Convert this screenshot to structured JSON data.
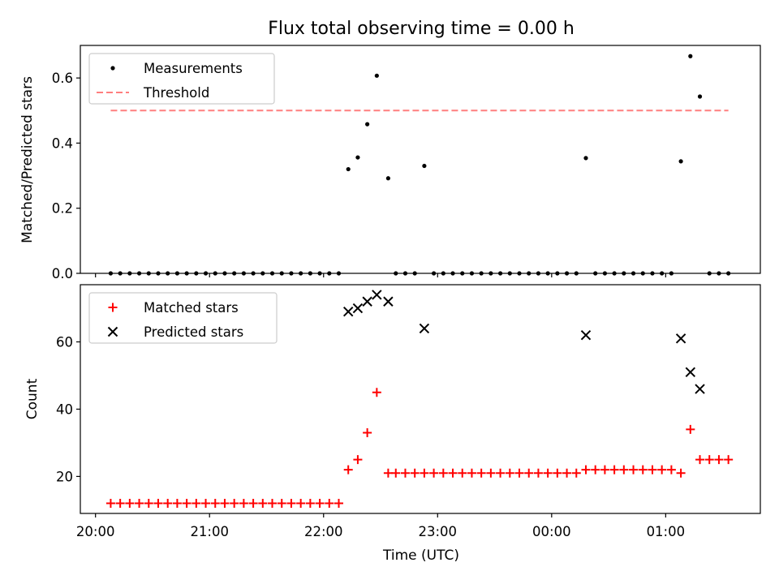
{
  "figure_title": "Flux total observing time = 0.00 h",
  "xlabel": "Time (UTC)",
  "xticks": [
    {
      "label": "20:00",
      "t": 20.0
    },
    {
      "label": "21:00",
      "t": 21.0
    },
    {
      "label": "22:00",
      "t": 22.0
    },
    {
      "label": "23:00",
      "t": 23.0
    },
    {
      "label": "00:00",
      "t": 24.0
    },
    {
      "label": "01:00",
      "t": 25.0
    }
  ],
  "chart_data": [
    {
      "type": "scatter",
      "ylabel": "Matched/Predicted stars",
      "ylim": [
        0,
        0.7
      ],
      "yticks": [
        0.0,
        0.2,
        0.4,
        0.6
      ],
      "ytick_labels": [
        "0.0",
        "0.2",
        "0.4",
        "0.6"
      ],
      "legend_position": "upper-left",
      "grid": false,
      "threshold": {
        "name": "Threshold",
        "value": 0.5,
        "x_range": [
          "20:08",
          "01:33"
        ],
        "color": "#ff7f7f",
        "style": "dashed"
      },
      "series": [
        {
          "name": "Measurements",
          "marker": "dot",
          "color": "#000000",
          "points": [
            [
              "20:08",
              0
            ],
            [
              "20:13",
              0
            ],
            [
              "20:18",
              0
            ],
            [
              "20:23",
              0
            ],
            [
              "20:28",
              0
            ],
            [
              "20:33",
              0
            ],
            [
              "20:38",
              0
            ],
            [
              "20:43",
              0
            ],
            [
              "20:48",
              0
            ],
            [
              "20:53",
              0
            ],
            [
              "20:58",
              0
            ],
            [
              "21:03",
              0
            ],
            [
              "21:08",
              0
            ],
            [
              "21:13",
              0
            ],
            [
              "21:18",
              0
            ],
            [
              "21:23",
              0
            ],
            [
              "21:28",
              0
            ],
            [
              "21:33",
              0
            ],
            [
              "21:38",
              0
            ],
            [
              "21:43",
              0
            ],
            [
              "21:48",
              0
            ],
            [
              "21:53",
              0
            ],
            [
              "21:58",
              0
            ],
            [
              "22:03",
              0
            ],
            [
              "22:08",
              0
            ],
            [
              "22:13",
              0.32
            ],
            [
              "22:18",
              0.356
            ],
            [
              "22:23",
              0.458
            ],
            [
              "22:28",
              0.607
            ],
            [
              "22:34",
              0.292
            ],
            [
              "22:38",
              0
            ],
            [
              "22:43",
              0
            ],
            [
              "22:48",
              0
            ],
            [
              "22:53",
              0.33
            ],
            [
              "22:58",
              0
            ],
            [
              "23:03",
              0
            ],
            [
              "23:08",
              0
            ],
            [
              "23:13",
              0
            ],
            [
              "23:18",
              0
            ],
            [
              "23:23",
              0
            ],
            [
              "23:28",
              0
            ],
            [
              "23:33",
              0
            ],
            [
              "23:38",
              0
            ],
            [
              "23:43",
              0
            ],
            [
              "23:48",
              0
            ],
            [
              "23:53",
              0
            ],
            [
              "23:58",
              0
            ],
            [
              "00:03",
              0
            ],
            [
              "00:08",
              0
            ],
            [
              "00:13",
              0
            ],
            [
              "00:18",
              0.354
            ],
            [
              "00:23",
              0
            ],
            [
              "00:28",
              0
            ],
            [
              "00:33",
              0
            ],
            [
              "00:38",
              0
            ],
            [
              "00:43",
              0
            ],
            [
              "00:48",
              0
            ],
            [
              "00:53",
              0
            ],
            [
              "00:58",
              0
            ],
            [
              "01:03",
              0
            ],
            [
              "01:08",
              0.344
            ],
            [
              "01:13",
              0.667
            ],
            [
              "01:18",
              0.543
            ],
            [
              "01:23",
              0
            ],
            [
              "01:28",
              0
            ],
            [
              "01:33",
              0
            ]
          ]
        }
      ]
    },
    {
      "type": "scatter",
      "ylabel": "Count",
      "ylim": [
        9,
        77
      ],
      "yticks": [
        20,
        40,
        60
      ],
      "ytick_labels": [
        "20",
        "40",
        "60"
      ],
      "legend_position": "upper-left",
      "grid": false,
      "series": [
        {
          "name": "Matched stars",
          "marker": "plus",
          "color": "#ff0000",
          "points": [
            [
              "20:08",
              12
            ],
            [
              "20:13",
              12
            ],
            [
              "20:18",
              12
            ],
            [
              "20:23",
              12
            ],
            [
              "20:28",
              12
            ],
            [
              "20:33",
              12
            ],
            [
              "20:38",
              12
            ],
            [
              "20:43",
              12
            ],
            [
              "20:48",
              12
            ],
            [
              "20:53",
              12
            ],
            [
              "20:58",
              12
            ],
            [
              "21:03",
              12
            ],
            [
              "21:08",
              12
            ],
            [
              "21:13",
              12
            ],
            [
              "21:18",
              12
            ],
            [
              "21:23",
              12
            ],
            [
              "21:28",
              12
            ],
            [
              "21:33",
              12
            ],
            [
              "21:38",
              12
            ],
            [
              "21:43",
              12
            ],
            [
              "21:48",
              12
            ],
            [
              "21:53",
              12
            ],
            [
              "21:58",
              12
            ],
            [
              "22:03",
              12
            ],
            [
              "22:08",
              12
            ],
            [
              "22:13",
              22
            ],
            [
              "22:18",
              25
            ],
            [
              "22:23",
              33
            ],
            [
              "22:28",
              45
            ],
            [
              "22:34",
              21
            ],
            [
              "22:38",
              21
            ],
            [
              "22:43",
              21
            ],
            [
              "22:48",
              21
            ],
            [
              "22:53",
              21
            ],
            [
              "22:58",
              21
            ],
            [
              "23:03",
              21
            ],
            [
              "23:08",
              21
            ],
            [
              "23:13",
              21
            ],
            [
              "23:18",
              21
            ],
            [
              "23:23",
              21
            ],
            [
              "23:28",
              21
            ],
            [
              "23:33",
              21
            ],
            [
              "23:38",
              21
            ],
            [
              "23:43",
              21
            ],
            [
              "23:48",
              21
            ],
            [
              "23:53",
              21
            ],
            [
              "23:58",
              21
            ],
            [
              "00:03",
              21
            ],
            [
              "00:08",
              21
            ],
            [
              "00:13",
              21
            ],
            [
              "00:18",
              22
            ],
            [
              "00:23",
              22
            ],
            [
              "00:28",
              22
            ],
            [
              "00:33",
              22
            ],
            [
              "00:38",
              22
            ],
            [
              "00:43",
              22
            ],
            [
              "00:48",
              22
            ],
            [
              "00:53",
              22
            ],
            [
              "00:58",
              22
            ],
            [
              "01:03",
              22
            ],
            [
              "01:08",
              21
            ],
            [
              "01:13",
              34
            ],
            [
              "01:18",
              25
            ],
            [
              "01:23",
              25
            ],
            [
              "01:28",
              25
            ],
            [
              "01:33",
              25
            ]
          ]
        },
        {
          "name": "Predicted stars",
          "marker": "x",
          "color": "#000000",
          "points": [
            [
              "22:13",
              69
            ],
            [
              "22:18",
              70
            ],
            [
              "22:23",
              72
            ],
            [
              "22:28",
              74
            ],
            [
              "22:34",
              72
            ],
            [
              "22:53",
              64
            ],
            [
              "00:18",
              62
            ],
            [
              "01:08",
              61
            ],
            [
              "01:13",
              51
            ],
            [
              "01:18",
              46
            ]
          ]
        }
      ]
    }
  ]
}
